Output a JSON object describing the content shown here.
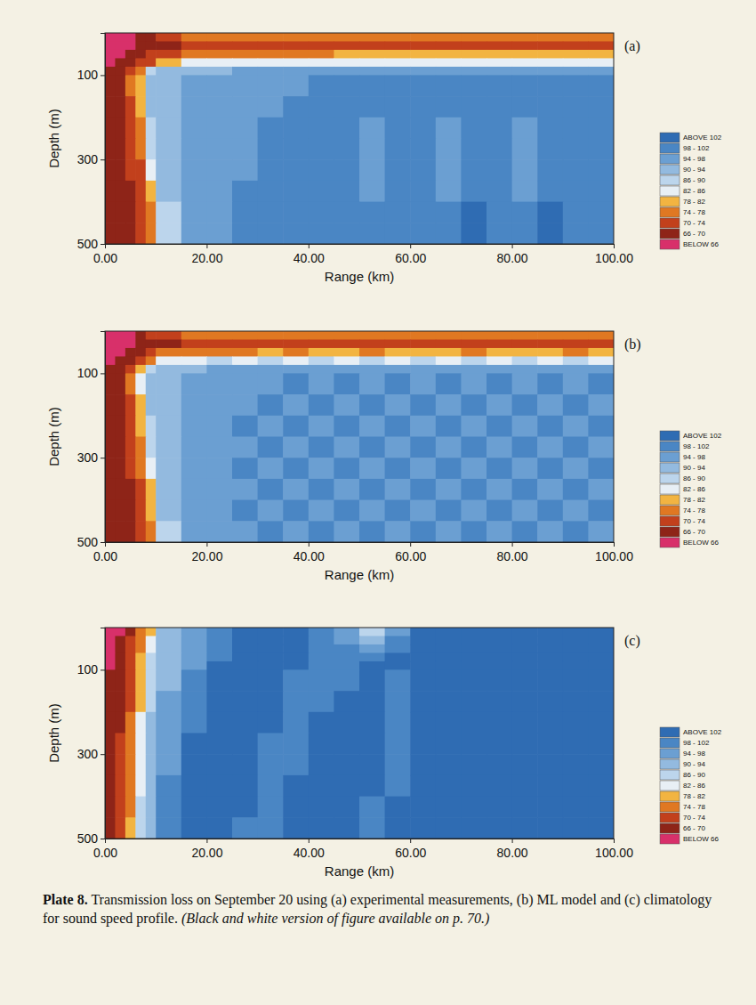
{
  "chart_data": [
    {
      "type": "heatmap",
      "panel_label": "(a)",
      "x_label": "Range (km)",
      "y_label": "Depth (m)",
      "xlim": [
        0,
        100
      ],
      "ylim": [
        0,
        500
      ],
      "xticks": [
        {
          "value": 0,
          "label": "0.00"
        },
        {
          "value": 20,
          "label": "20.00"
        },
        {
          "value": 40,
          "label": "40.00"
        },
        {
          "value": 60,
          "label": "60.00"
        },
        {
          "value": 80,
          "label": "80.00"
        },
        {
          "value": 100,
          "label": "100.00"
        }
      ],
      "yticks": [
        100,
        300,
        500
      ],
      "x_edges": [
        0,
        2,
        4,
        6,
        8,
        10,
        15,
        20,
        25,
        30,
        35,
        40,
        45,
        50,
        55,
        60,
        65,
        70,
        75,
        80,
        85,
        90,
        95,
        100
      ],
      "y_edges": [
        0,
        20,
        40,
        60,
        80,
        100,
        150,
        200,
        250,
        300,
        350,
        400,
        450,
        500
      ],
      "cells": [
        [
          62,
          62,
          64,
          66,
          68,
          72,
          74,
          76,
          76,
          76,
          76,
          76,
          76,
          76,
          76,
          76,
          76,
          76,
          76,
          76,
          76,
          76,
          76
        ],
        [
          62,
          62,
          64,
          66,
          66,
          68,
          70,
          70,
          72,
          72,
          72,
          72,
          72,
          72,
          72,
          72,
          72,
          72,
          72,
          72,
          72,
          72,
          72
        ],
        [
          62,
          64,
          66,
          68,
          70,
          72,
          74,
          76,
          76,
          76,
          76,
          76,
          78,
          78,
          78,
          78,
          78,
          78,
          78,
          78,
          78,
          78,
          78
        ],
        [
          64,
          66,
          68,
          70,
          72,
          80,
          82,
          84,
          84,
          84,
          84,
          84,
          84,
          84,
          84,
          84,
          84,
          84,
          84,
          84,
          84,
          84,
          84
        ],
        [
          66,
          68,
          72,
          76,
          86,
          90,
          92,
          92,
          94,
          94,
          94,
          96,
          96,
          96,
          96,
          96,
          96,
          96,
          96,
          96,
          96,
          96,
          96
        ],
        [
          66,
          68,
          74,
          80,
          90,
          92,
          94,
          94,
          96,
          96,
          96,
          98,
          98,
          98,
          100,
          98,
          100,
          98,
          100,
          100,
          98,
          100,
          100
        ],
        [
          66,
          68,
          72,
          78,
          90,
          92,
          94,
          94,
          96,
          96,
          98,
          98,
          98,
          100,
          100,
          100,
          100,
          100,
          100,
          100,
          100,
          100,
          100
        ],
        [
          66,
          68,
          70,
          76,
          88,
          92,
          94,
          94,
          96,
          98,
          98,
          98,
          100,
          96,
          100,
          100,
          96,
          100,
          100,
          96,
          100,
          100,
          100
        ],
        [
          66,
          68,
          70,
          74,
          86,
          92,
          94,
          96,
          96,
          98,
          98,
          100,
          100,
          96,
          100,
          100,
          96,
          100,
          100,
          96,
          100,
          100,
          100
        ],
        [
          66,
          66,
          70,
          72,
          82,
          90,
          94,
          96,
          96,
          98,
          98,
          100,
          100,
          96,
          100,
          100,
          96,
          100,
          100,
          96,
          100,
          100,
          100
        ],
        [
          66,
          66,
          68,
          72,
          78,
          90,
          94,
          96,
          98,
          98,
          100,
          100,
          100,
          96,
          100,
          100,
          96,
          100,
          100,
          96,
          100,
          100,
          100
        ],
        [
          66,
          66,
          68,
          70,
          76,
          88,
          94,
          96,
          98,
          98,
          100,
          100,
          100,
          100,
          100,
          100,
          100,
          104,
          100,
          100,
          104,
          100,
          100
        ],
        [
          66,
          66,
          68,
          70,
          76,
          86,
          94,
          96,
          98,
          98,
          100,
          100,
          100,
          100,
          100,
          100,
          100,
          104,
          100,
          100,
          104,
          100,
          100
        ]
      ],
      "color_bar": {
        "levels": [
          66,
          70,
          74,
          78,
          82,
          86,
          90,
          94,
          98,
          102
        ],
        "labels": [
          "BELOW 66",
          "66 - 70",
          "70 - 74",
          "74 - 78",
          "78 - 82",
          "82 - 86",
          "86 - 90",
          "90 - 94",
          "94 - 98",
          "98 - 102",
          "ABOVE 102"
        ],
        "colors": [
          "#d8306a",
          "#8e2418",
          "#c2401c",
          "#e07822",
          "#f2b441",
          "#e8eff5",
          "#bcd5ec",
          "#93badf",
          "#6b9fd2",
          "#4a86c4",
          "#2f6cb3"
        ]
      }
    },
    {
      "type": "heatmap",
      "panel_label": "(b)",
      "x_label": "Range (km)",
      "y_label": "Depth (m)",
      "xlim": [
        0,
        100
      ],
      "ylim": [
        0,
        500
      ],
      "xticks": [
        {
          "value": 0,
          "label": "0.00"
        },
        {
          "value": 20,
          "label": "20.00"
        },
        {
          "value": 40,
          "label": "40.00"
        },
        {
          "value": 60,
          "label": "60.00"
        },
        {
          "value": 80,
          "label": "80.00"
        },
        {
          "value": 100,
          "label": "100.00"
        }
      ],
      "yticks": [
        100,
        300,
        500
      ],
      "x_edges": [
        0,
        2,
        4,
        6,
        8,
        10,
        15,
        20,
        25,
        30,
        35,
        40,
        45,
        50,
        55,
        60,
        65,
        70,
        75,
        80,
        85,
        90,
        95,
        100
      ],
      "y_edges": [
        0,
        20,
        40,
        60,
        80,
        100,
        150,
        200,
        250,
        300,
        350,
        400,
        450,
        500
      ],
      "cells": [
        [
          62,
          62,
          64,
          66,
          70,
          72,
          74,
          76,
          76,
          76,
          76,
          76,
          76,
          76,
          76,
          76,
          76,
          76,
          76,
          76,
          76,
          76,
          76
        ],
        [
          62,
          62,
          64,
          66,
          68,
          68,
          70,
          70,
          70,
          72,
          72,
          72,
          72,
          72,
          72,
          72,
          72,
          72,
          72,
          72,
          72,
          72,
          72
        ],
        [
          62,
          64,
          66,
          68,
          72,
          74,
          76,
          76,
          76,
          78,
          76,
          78,
          78,
          76,
          78,
          78,
          78,
          76,
          78,
          78,
          78,
          76,
          78
        ],
        [
          64,
          66,
          68,
          72,
          76,
          82,
          84,
          86,
          82,
          86,
          84,
          86,
          82,
          86,
          84,
          86,
          84,
          86,
          82,
          86,
          84,
          86,
          84
        ],
        [
          66,
          68,
          72,
          78,
          88,
          92,
          92,
          94,
          94,
          96,
          94,
          96,
          94,
          96,
          96,
          94,
          96,
          96,
          94,
          96,
          96,
          94,
          96
        ],
        [
          66,
          68,
          74,
          82,
          92,
          92,
          94,
          96,
          96,
          96,
          100,
          96,
          100,
          96,
          100,
          96,
          100,
          96,
          100,
          96,
          100,
          96,
          100
        ],
        [
          66,
          68,
          72,
          80,
          90,
          92,
          94,
          96,
          96,
          100,
          96,
          100,
          96,
          100,
          96,
          100,
          96,
          100,
          96,
          100,
          96,
          100,
          96
        ],
        [
          66,
          68,
          70,
          78,
          88,
          92,
          94,
          96,
          100,
          96,
          100,
          96,
          100,
          96,
          100,
          96,
          100,
          96,
          100,
          96,
          100,
          96,
          100
        ],
        [
          66,
          68,
          70,
          76,
          86,
          92,
          94,
          96,
          96,
          100,
          96,
          100,
          96,
          100,
          96,
          100,
          96,
          100,
          96,
          100,
          96,
          100,
          96
        ],
        [
          66,
          66,
          70,
          74,
          84,
          92,
          94,
          96,
          100,
          96,
          100,
          96,
          100,
          96,
          100,
          96,
          100,
          96,
          100,
          96,
          100,
          96,
          100
        ],
        [
          66,
          66,
          68,
          72,
          80,
          90,
          94,
          96,
          96,
          100,
          96,
          100,
          96,
          100,
          96,
          100,
          96,
          100,
          96,
          100,
          96,
          100,
          96
        ],
        [
          66,
          66,
          68,
          72,
          78,
          90,
          94,
          96,
          100,
          96,
          100,
          96,
          100,
          96,
          100,
          96,
          100,
          96,
          100,
          96,
          100,
          96,
          100
        ],
        [
          66,
          66,
          68,
          70,
          76,
          88,
          94,
          96,
          96,
          100,
          96,
          100,
          96,
          100,
          96,
          100,
          96,
          100,
          96,
          100,
          96,
          100,
          96
        ]
      ],
      "color_bar": {
        "levels": [
          66,
          70,
          74,
          78,
          82,
          86,
          90,
          94,
          98,
          102
        ],
        "labels": [
          "BELOW 66",
          "66 - 70",
          "70 - 74",
          "74 - 78",
          "78 - 82",
          "82 - 86",
          "86 - 90",
          "90 - 94",
          "94 - 98",
          "98 - 102",
          "ABOVE 102"
        ],
        "colors": [
          "#d8306a",
          "#8e2418",
          "#c2401c",
          "#e07822",
          "#f2b441",
          "#e8eff5",
          "#bcd5ec",
          "#93badf",
          "#6b9fd2",
          "#4a86c4",
          "#2f6cb3"
        ]
      }
    },
    {
      "type": "heatmap",
      "panel_label": "(c)",
      "x_label": "Range (km)",
      "y_label": "Depth (m)",
      "xlim": [
        0,
        100
      ],
      "ylim": [
        0,
        500
      ],
      "xticks": [
        {
          "value": 0,
          "label": "0.00"
        },
        {
          "value": 20,
          "label": "20.00"
        },
        {
          "value": 40,
          "label": "40.00"
        },
        {
          "value": 60,
          "label": "60.00"
        },
        {
          "value": 80,
          "label": "80.00"
        },
        {
          "value": 100,
          "label": "100.00"
        }
      ],
      "yticks": [
        100,
        300,
        500
      ],
      "x_edges": [
        0,
        2,
        4,
        6,
        8,
        10,
        15,
        20,
        25,
        30,
        35,
        40,
        45,
        50,
        55,
        60,
        65,
        70,
        75,
        80,
        85,
        90,
        95,
        100
      ],
      "y_edges": [
        0,
        20,
        40,
        60,
        80,
        100,
        150,
        200,
        250,
        300,
        350,
        400,
        450,
        500
      ],
      "cells": [
        [
          62,
          64,
          68,
          74,
          80,
          90,
          94,
          98,
          104,
          104,
          104,
          100,
          94,
          88,
          96,
          104,
          104,
          104,
          104,
          104,
          104,
          104,
          104
        ],
        [
          64,
          66,
          70,
          76,
          82,
          90,
          94,
          98,
          104,
          104,
          104,
          100,
          96,
          92,
          98,
          104,
          104,
          104,
          104,
          104,
          104,
          104,
          104
        ],
        [
          64,
          66,
          70,
          76,
          84,
          90,
          96,
          100,
          104,
          104,
          104,
          100,
          98,
          96,
          100,
          104,
          104,
          104,
          104,
          104,
          104,
          104,
          104
        ],
        [
          64,
          66,
          70,
          78,
          86,
          92,
          96,
          100,
          104,
          104,
          104,
          100,
          100,
          98,
          104,
          104,
          104,
          104,
          104,
          104,
          104,
          104,
          104
        ],
        [
          64,
          68,
          72,
          78,
          86,
          92,
          96,
          104,
          104,
          104,
          104,
          100,
          100,
          104,
          104,
          104,
          104,
          104,
          104,
          104,
          104,
          104,
          104
        ],
        [
          66,
          68,
          72,
          80,
          88,
          92,
          98,
          104,
          104,
          104,
          100,
          100,
          100,
          104,
          100,
          104,
          104,
          104,
          104,
          104,
          104,
          104,
          104
        ],
        [
          66,
          68,
          72,
          80,
          88,
          94,
          100,
          104,
          104,
          104,
          100,
          100,
          104,
          104,
          100,
          104,
          104,
          104,
          104,
          104,
          104,
          104,
          104
        ],
        [
          66,
          68,
          74,
          82,
          90,
          94,
          100,
          104,
          104,
          104,
          100,
          104,
          104,
          104,
          100,
          104,
          104,
          104,
          104,
          104,
          104,
          104,
          104
        ],
        [
          66,
          70,
          74,
          82,
          90,
          96,
          104,
          104,
          104,
          100,
          100,
          104,
          104,
          104,
          100,
          104,
          104,
          104,
          104,
          104,
          104,
          104,
          104
        ],
        [
          66,
          70,
          74,
          84,
          90,
          96,
          104,
          104,
          104,
          100,
          100,
          104,
          104,
          104,
          100,
          104,
          104,
          104,
          104,
          104,
          104,
          104,
          104
        ],
        [
          66,
          70,
          76,
          84,
          90,
          98,
          104,
          104,
          104,
          100,
          104,
          104,
          104,
          104,
          100,
          104,
          104,
          104,
          104,
          104,
          104,
          104,
          104
        ],
        [
          68,
          70,
          76,
          86,
          92,
          98,
          104,
          104,
          104,
          100,
          104,
          104,
          104,
          100,
          104,
          104,
          104,
          104,
          104,
          104,
          104,
          104,
          104
        ],
        [
          68,
          70,
          78,
          86,
          92,
          98,
          104,
          104,
          100,
          100,
          104,
          104,
          104,
          100,
          104,
          104,
          104,
          104,
          104,
          104,
          104,
          104,
          104
        ]
      ],
      "color_bar": {
        "levels": [
          66,
          70,
          74,
          78,
          82,
          86,
          90,
          94,
          98,
          102
        ],
        "labels": [
          "BELOW 66",
          "66 - 70",
          "70 - 74",
          "74 - 78",
          "78 - 82",
          "82 - 86",
          "86 - 90",
          "90 - 94",
          "94 - 98",
          "98 - 102",
          "ABOVE 102"
        ],
        "colors": [
          "#d8306a",
          "#8e2418",
          "#c2401c",
          "#e07822",
          "#f2b441",
          "#e8eff5",
          "#bcd5ec",
          "#93badf",
          "#6b9fd2",
          "#4a86c4",
          "#2f6cb3"
        ]
      }
    }
  ],
  "caption": {
    "label": "Plate 8.",
    "text": "Transmission loss on September 20 using (a) experimental measurements, (b) ML model and (c) climatology for sound speed profile.",
    "note": "(Black and white version of figure available on p. 70.)"
  }
}
